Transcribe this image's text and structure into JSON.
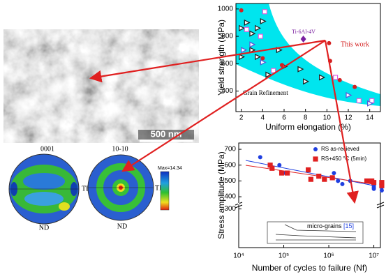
{
  "micrograph": {
    "scale_bar": "500 nm"
  },
  "pole_figures": [
    {
      "title": "0001",
      "right_label": "TD",
      "bottom_label": "ND"
    },
    {
      "title": "10-10",
      "right_label": "TD",
      "bottom_label": "ND"
    }
  ],
  "colorbar": {
    "max_label": "Max=14.34"
  },
  "chart_data": [
    {
      "type": "scatter",
      "x_label": "Uniform elongation (%)",
      "y_label": "Yield strength (MPa)",
      "region_label": "Grain Refinement",
      "annotations": [
        "Ti-6Al-4V",
        "This work"
      ],
      "xlim": [
        1.5,
        15
      ],
      "xticks": [
        2,
        4,
        6,
        8,
        10,
        12,
        14
      ],
      "ylim": [
        250,
        1040
      ],
      "yticks": [
        400,
        600,
        800,
        1000
      ],
      "series": [
        {
          "color": "#222222",
          "marker": "triangle",
          "x": [
            2,
            2.5,
            3,
            3.5,
            4,
            3,
            5.5,
            4.5,
            6,
            8,
            9.5,
            3.5,
            2,
            7.5
          ],
          "values": [
            860,
            900,
            820,
            860,
            910,
            700,
            700,
            520,
            580,
            470,
            500,
            650,
            650,
            560
          ]
        },
        {
          "color": "#e05ce0",
          "marker": "square",
          "x": [
            2.5,
            4.2,
            3.8,
            5,
            10.8,
            13,
            14.2
          ],
          "values": [
            850,
            980,
            800,
            550,
            500,
            330,
            330
          ]
        },
        {
          "color": "#d42020",
          "marker": "circle",
          "x": [
            2,
            10.2,
            10.3,
            5.8,
            11.2,
            12.6,
            4
          ],
          "values": [
            990,
            750,
            620,
            590,
            480,
            430,
            640
          ]
        },
        {
          "color": "#5a5ad8",
          "marker": "triangle",
          "x": [
            2.2,
            3,
            4,
            12,
            14
          ],
          "values": [
            700,
            740,
            610,
            370,
            310
          ]
        },
        {
          "color": "#7a1fa0",
          "marker": "diamond",
          "x": [
            7.8
          ],
          "values": [
            780
          ]
        }
      ]
    },
    {
      "type": "scatter",
      "x_label": "Number of cycles to failure (Nf)",
      "y_label": "Stress amplitude (MPa)",
      "log_x": true,
      "xlim": [
        10000,
        14000000
      ],
      "xticks": [
        {
          "value": 10000,
          "label": "10⁴"
        },
        {
          "value": 100000,
          "label": "10⁵"
        },
        {
          "value": 1000000,
          "label": "10⁶"
        },
        {
          "value": 10000000,
          "label": "10⁷"
        }
      ],
      "ylim": [
        365,
        740
      ],
      "yticks": [
        400,
        500,
        600,
        700
      ],
      "lower_ylim": [
        100,
        320
      ],
      "lower_yticks": [
        300
      ],
      "inset_label": "micro-grains",
      "inset_ref": "[15]",
      "legend": "top-right",
      "series": [
        {
          "name": "RS as-recieved",
          "color": "#1f3fe0",
          "marker": "circle",
          "x": [
            30000,
            80000,
            110000,
            1300000,
            1600000,
            2000000,
            3000000,
            10000000,
            10000000,
            10000000,
            10000000,
            15000000,
            15000000
          ],
          "values": [
            650,
            600,
            550,
            550,
            500,
            480,
            500,
            480,
            470,
            460,
            450,
            460,
            440
          ]
        },
        {
          "name": "RS+450 °C (5min)",
          "color": "#e02020",
          "marker": "square",
          "x": [
            50000,
            55000,
            90000,
            120000,
            350000,
            400000,
            600000,
            800000,
            1200000,
            7000000,
            9000000,
            10000000,
            15000000,
            15000000
          ],
          "values": [
            600,
            580,
            550,
            550,
            570,
            510,
            530,
            510,
            520,
            500,
            500,
            490,
            490,
            470
          ]
        }
      ]
    }
  ]
}
